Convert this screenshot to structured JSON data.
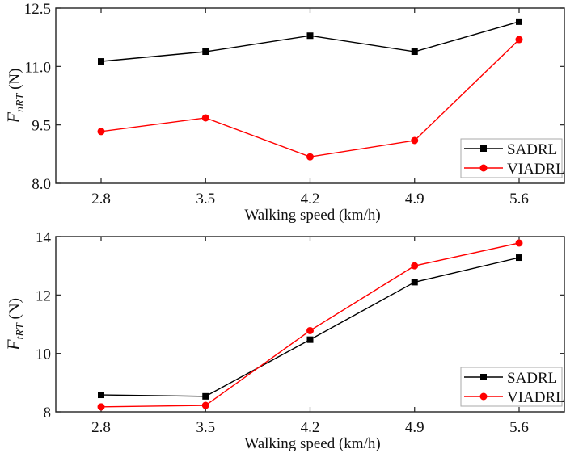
{
  "chart_data": [
    {
      "type": "line",
      "title": "",
      "xlabel": "Walking speed (km/h)",
      "ylabel": {
        "main": "F",
        "sub": "nRT",
        "unit": " (N)"
      },
      "categories": [
        "2.8",
        "3.5",
        "4.2",
        "4.9",
        "5.6"
      ],
      "x": [
        2.8,
        3.5,
        4.2,
        4.9,
        5.6
      ],
      "ylim": [
        8.0,
        12.5
      ],
      "yticks": [
        8.0,
        9.5,
        11.0,
        12.5
      ],
      "ytick_labels": [
        "8.0",
        "9.5",
        "11.0",
        "12.5"
      ],
      "grid": false,
      "legend_position": "bottom-right",
      "series": [
        {
          "name": "SADRL",
          "color": "#000000",
          "marker": "square",
          "values": [
            11.13,
            11.38,
            11.79,
            11.38,
            12.15
          ]
        },
        {
          "name": "VIADRL",
          "color": "#ff0000",
          "marker": "circle",
          "values": [
            9.33,
            9.68,
            8.68,
            9.1,
            11.69
          ]
        }
      ]
    },
    {
      "type": "line",
      "title": "",
      "xlabel": "Walking speed (km/h)",
      "ylabel": {
        "main": "F",
        "sub": "tRT",
        "unit": " (N)"
      },
      "categories": [
        "2.8",
        "3.5",
        "4.2",
        "4.9",
        "5.6"
      ],
      "x": [
        2.8,
        3.5,
        4.2,
        4.9,
        5.6
      ],
      "ylim": [
        8,
        14
      ],
      "yticks": [
        8,
        10,
        12,
        14
      ],
      "ytick_labels": [
        "8",
        "10",
        "12",
        "14"
      ],
      "grid": false,
      "legend_position": "bottom-right",
      "series": [
        {
          "name": "SADRL",
          "color": "#000000",
          "marker": "square",
          "values": [
            8.58,
            8.53,
            10.47,
            12.44,
            13.28
          ]
        },
        {
          "name": "VIADRL",
          "color": "#ff0000",
          "marker": "circle",
          "values": [
            8.17,
            8.22,
            10.78,
            13.0,
            13.78
          ]
        }
      ]
    }
  ]
}
